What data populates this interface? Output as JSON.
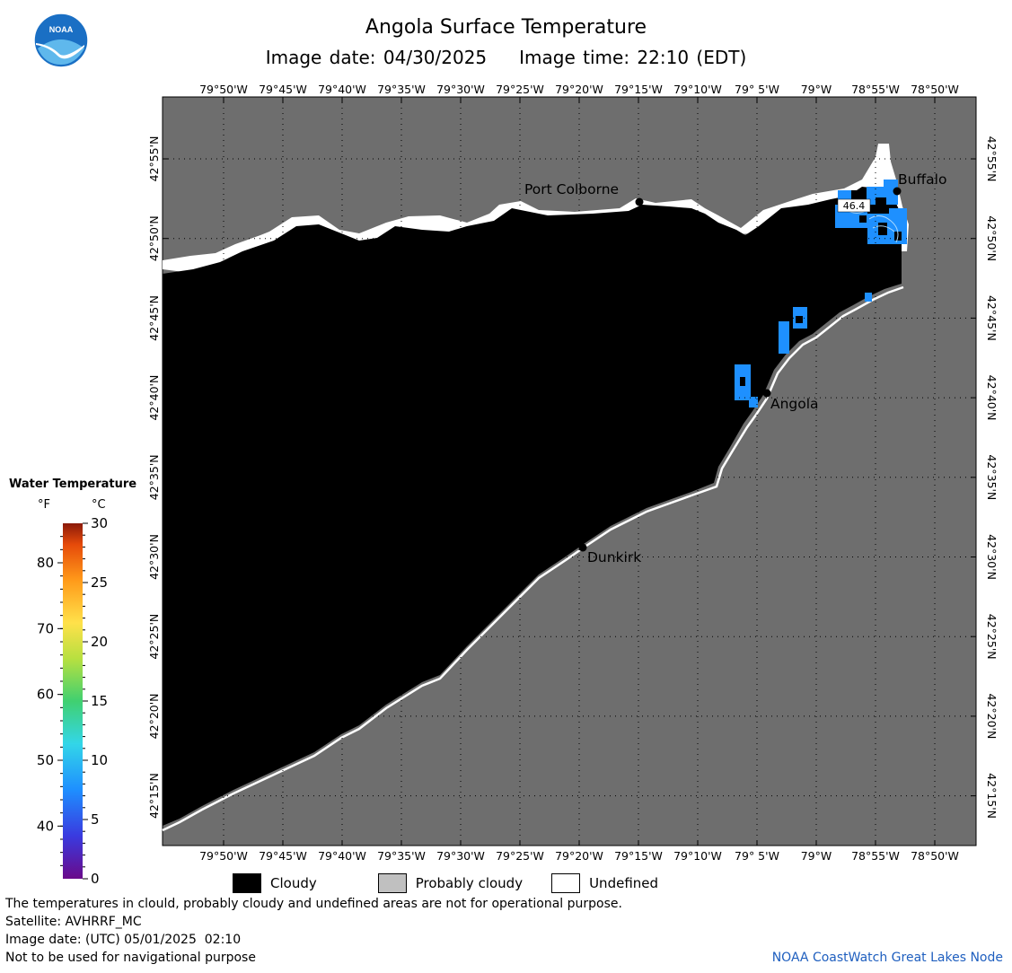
{
  "header": {
    "title": "Angola Surface Temperature",
    "image_date": "Image date: 04/30/2025",
    "image_time": "Image time: 22:10 (EDT)"
  },
  "logo": {
    "text": "NOAA"
  },
  "map": {
    "top_lon_labels": [
      "79°50'W",
      "79°45'W",
      "79°40'W",
      "79°35'W",
      "79°30'W",
      "79°25'W",
      "79°20'W",
      "79°15'W",
      "79°10'W",
      "79° 5'W",
      "79°W",
      "78°55'W",
      "78°50'W"
    ],
    "bottom_lon_labels": [
      "79°50'W",
      "79°45'W",
      "79°40'W",
      "79°35'W",
      "79°30'W",
      "79°25'W",
      "79°20'W",
      "79°15'W",
      "79°10'W",
      "79° 5'W",
      "79°W",
      "78°55'W",
      "78°50'W"
    ],
    "lat_labels": [
      "42°55'N",
      "42°50'N",
      "42°45'N",
      "42°40'N",
      "42°35'N",
      "42°30'N",
      "42°25'N",
      "42°20'N",
      "42°15'N"
    ],
    "cities": [
      {
        "name": "Port Colborne"
      },
      {
        "name": "Buffalo"
      },
      {
        "name": "Angola"
      },
      {
        "name": "Dunkirk"
      }
    ],
    "temp_readout": "46.4",
    "colors": {
      "land": "#6e6e6e",
      "cloudy": "#000000",
      "water_cold": "#1e90ff",
      "undefined": "#ffffff"
    }
  },
  "colorbar": {
    "title": "Water Temperature",
    "unit_f": "°F",
    "unit_c": "°C",
    "f_ticks": [
      "80",
      "70",
      "60",
      "50",
      "40"
    ],
    "c_ticks": [
      "30",
      "25",
      "20",
      "15",
      "10",
      "5",
      "0"
    ],
    "range_c": [
      0,
      30
    ]
  },
  "legend": {
    "items": [
      {
        "label": "Cloudy",
        "color": "#000000"
      },
      {
        "label": "Probably cloudy",
        "color": "#c0c0c0"
      },
      {
        "label": "Undefined",
        "color": "#ffffff"
      }
    ]
  },
  "notes": {
    "disclaimer": "The temperatures in clould, probably cloudy and undefined areas are not for operational purpose.",
    "satellite": "Satellite: AVHRRF_MC",
    "utc_date": "Image date: (UTC) 05/01/2025  02:10",
    "nav_warning": "Not to be used for navigational purpose",
    "credit": "NOAA CoastWatch Great Lakes Node"
  }
}
